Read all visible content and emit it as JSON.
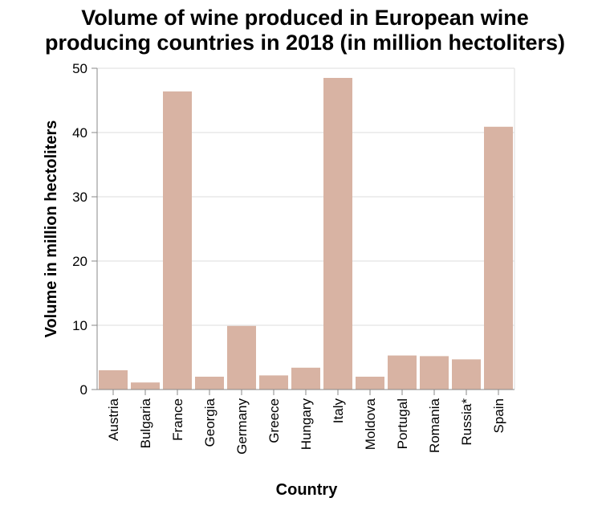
{
  "chart_data": {
    "type": "bar",
    "title": "Volume of wine produced in European wine producing countries in 2018 (in million hectoliters)",
    "title_lines": [
      "Volume of wine produced in European wine",
      "producing countries in 2018 (in million hectoliters)"
    ],
    "xlabel": "Country",
    "ylabel": "Volume in million hectoliters",
    "categories": [
      "Austria",
      "Bulgaria",
      "France",
      "Georgia",
      "Germany",
      "Greece",
      "Hungary",
      "Italy",
      "Moldova",
      "Portugal",
      "Romania",
      "Russia*",
      "Spain"
    ],
    "values": [
      3.0,
      1.1,
      46.4,
      2.0,
      9.9,
      2.2,
      3.4,
      48.5,
      2.0,
      5.3,
      5.2,
      4.7,
      40.9
    ],
    "ylim": [
      0,
      50
    ],
    "yticks": [
      0,
      10,
      20,
      30,
      40,
      50
    ],
    "grid": true,
    "bar_color": "#d8b3a3"
  }
}
